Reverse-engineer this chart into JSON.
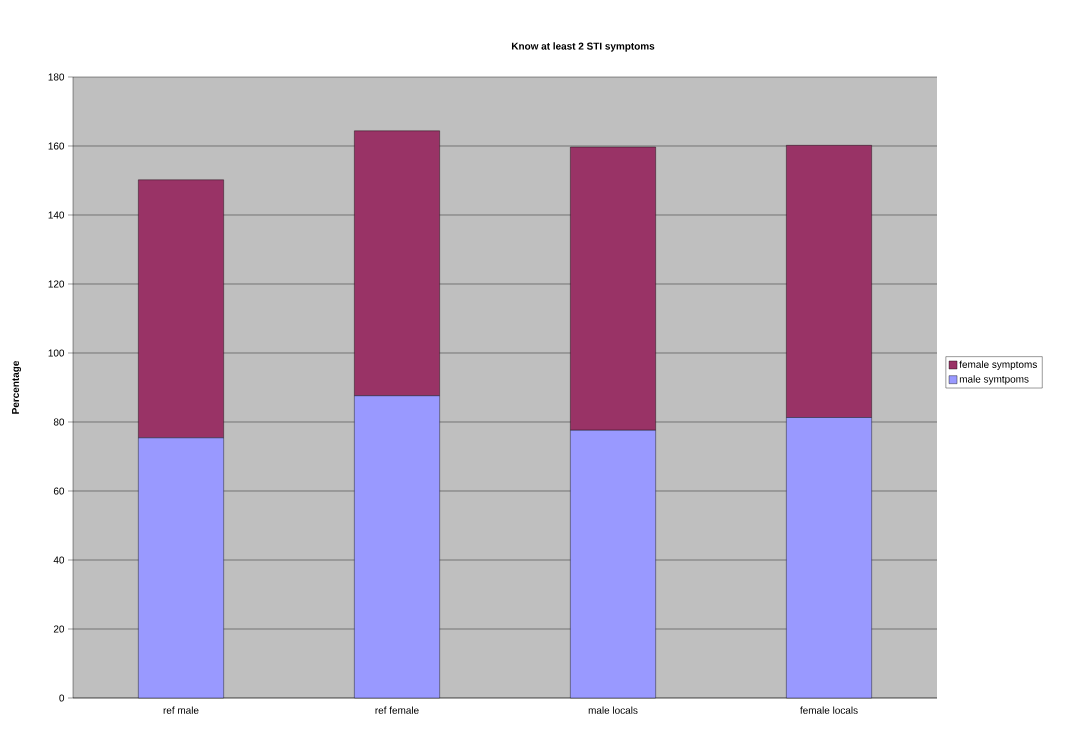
{
  "chart_data": {
    "type": "bar",
    "stacked": true,
    "title": "Know at least 2 STI symptoms",
    "ylabel": "Percentage",
    "categories": [
      "ref male",
      "ref female",
      "male locals",
      "female locals"
    ],
    "series": [
      {
        "name": "male symtpoms",
        "color": "#9999ff",
        "values": [
          75.4,
          87.6,
          77.6,
          81.3
        ]
      },
      {
        "name": "female symptoms",
        "color": "#993366",
        "values": [
          74.8,
          76.8,
          82.1,
          78.9
        ]
      }
    ],
    "ylim": [
      0,
      180
    ],
    "yticks": [
      0,
      20,
      40,
      60,
      80,
      100,
      120,
      140,
      160,
      180
    ],
    "grid": "y",
    "legend": "right"
  }
}
